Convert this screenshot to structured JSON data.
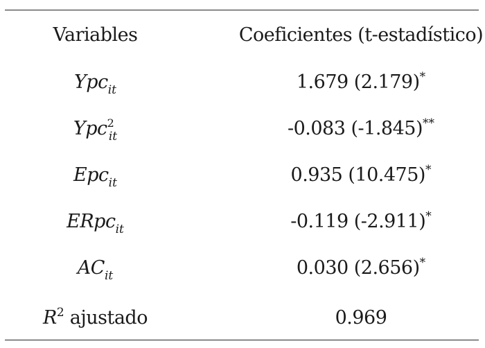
{
  "table": {
    "headers": {
      "variables": "Variables",
      "coefficients": "Coeficientes (t-estadístico)"
    },
    "rows": [
      {
        "var_main": "Ypc",
        "var_sup": "",
        "var_sub": "it",
        "coef": "1.679 (2.179)",
        "sig": "*"
      },
      {
        "var_main": "Ypc",
        "var_sup": "2",
        "var_sub": "it",
        "coef": "-0.083 (-1.845)",
        "sig": "**"
      },
      {
        "var_main": "Epc",
        "var_sup": "",
        "var_sub": "it",
        "coef": "0.935 (10.475)",
        "sig": "*"
      },
      {
        "var_main": "ERpc",
        "var_sup": "",
        "var_sub": "it",
        "coef": "-0.119 (-2.911)",
        "sig": "*"
      },
      {
        "var_main": "AC",
        "var_sup": "",
        "var_sub": "it",
        "coef": "0.030 (2.656)",
        "sig": "*"
      }
    ],
    "r2_row": {
      "var_main": "R",
      "var_sup": "2",
      "var_rest": " ajustado",
      "coef": "0.969"
    }
  }
}
